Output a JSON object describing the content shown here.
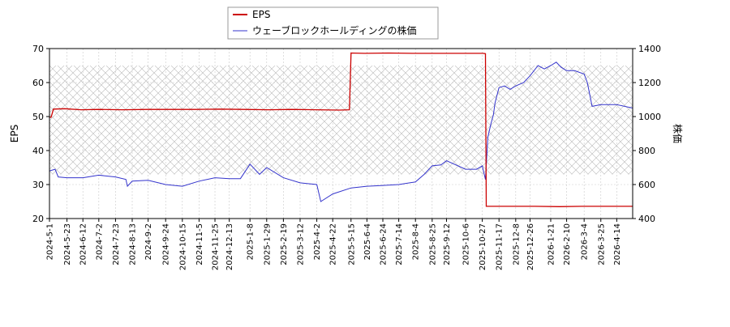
{
  "chart_data": {
    "type": "line",
    "legend": {
      "placement": "top-center",
      "entries": [
        {
          "label": "EPS",
          "color": "#cc0000"
        },
        {
          "label": "ウェーブロックホールディングの株価",
          "color": "#3333cc"
        }
      ]
    },
    "y_left": {
      "label": "EPS",
      "range": [
        20,
        70
      ],
      "ticks": [
        "20",
        "30",
        "40",
        "50",
        "60",
        "70"
      ]
    },
    "y_right": {
      "label": "株価",
      "range": [
        400,
        1400
      ],
      "ticks": [
        "400",
        "600",
        "800",
        "1000",
        "1200",
        "1400"
      ]
    },
    "x_axis": {
      "range": [
        "2024-05-01",
        "2026-05-04"
      ],
      "ticks": [
        "2024-5-1",
        "2024-5-23",
        "2024-6-12",
        "2024-7-2",
        "2024-7-23",
        "2024-8-13",
        "2024-9-2",
        "2024-9-24",
        "2024-10-15",
        "2024-11-5",
        "2024-11-25",
        "2024-12-13",
        "2025-1-8",
        "2025-1-29",
        "2025-2-19",
        "2025-3-12",
        "2025-4-2",
        "2025-4-22",
        "2025-5-15",
        "2025-6-4",
        "2025-6-24",
        "2025-7-14",
        "2025-8-4",
        "2025-8-25",
        "2025-9-12",
        "2025-10-6",
        "2025-10-27",
        "2025-11-17",
        "2025-12-8",
        "2025-12-26",
        "2026-1-21",
        "2026-2-10",
        "2026-3-4",
        "2026-3-25",
        "2026-4-14"
      ]
    },
    "hatch_band_right_axis": [
      660,
      1300
    ],
    "series": [
      {
        "name": "EPS",
        "axis": "left",
        "color": "#cc0000",
        "x": [
          "2024-05-01",
          "2024-05-03",
          "2024-05-06",
          "2024-05-20",
          "2024-06-10",
          "2024-07-01",
          "2024-08-01",
          "2024-09-01",
          "2024-10-01",
          "2024-11-01",
          "2024-12-01",
          "2025-01-01",
          "2025-02-01",
          "2025-03-01",
          "2025-04-01",
          "2025-05-01",
          "2025-05-13",
          "2025-05-15",
          "2025-06-01",
          "2025-07-01",
          "2025-08-01",
          "2025-09-01",
          "2025-10-01",
          "2025-10-28",
          "2025-10-31",
          "2025-11-01",
          "2025-12-01",
          "2026-01-01",
          "2026-02-01",
          "2026-03-01",
          "2026-04-01",
          "2026-05-04"
        ],
        "y": [
          49.8,
          49.8,
          52.2,
          52.3,
          52.0,
          52.1,
          52.0,
          52.1,
          52.1,
          52.1,
          52.2,
          52.1,
          52.0,
          52.1,
          52.0,
          51.9,
          52.0,
          68.7,
          68.6,
          68.7,
          68.6,
          68.6,
          68.6,
          68.6,
          68.5,
          23.6,
          23.6,
          23.6,
          23.5,
          23.6,
          23.6,
          23.6
        ]
      },
      {
        "name": "ウェーブロックホールディングの株価",
        "axis": "right",
        "color": "#3333cc",
        "x": [
          "2024-05-01",
          "2024-05-08",
          "2024-05-12",
          "2024-05-23",
          "2024-06-12",
          "2024-07-02",
          "2024-07-23",
          "2024-08-05",
          "2024-08-07",
          "2024-08-13",
          "2024-09-02",
          "2024-09-24",
          "2024-10-15",
          "2024-11-05",
          "2024-11-25",
          "2024-12-13",
          "2024-12-27",
          "2025-01-08",
          "2025-01-20",
          "2025-01-29",
          "2025-02-19",
          "2025-03-12",
          "2025-04-02",
          "2025-04-07",
          "2025-04-22",
          "2025-05-15",
          "2025-06-04",
          "2025-06-24",
          "2025-07-14",
          "2025-08-04",
          "2025-08-15",
          "2025-08-25",
          "2025-09-05",
          "2025-09-12",
          "2025-10-06",
          "2025-10-20",
          "2025-10-27",
          "2025-10-31",
          "2025-11-03",
          "2025-11-07",
          "2025-11-10",
          "2025-11-12",
          "2025-11-17",
          "2025-11-24",
          "2025-12-01",
          "2025-12-08",
          "2025-12-18",
          "2025-12-26",
          "2026-01-05",
          "2026-01-13",
          "2026-01-21",
          "2026-01-28",
          "2026-02-03",
          "2026-02-10",
          "2026-02-20",
          "2026-03-04",
          "2026-03-08",
          "2026-03-14",
          "2026-03-25",
          "2026-04-14",
          "2026-05-04"
        ],
        "y": [
          680,
          690,
          645,
          640,
          640,
          655,
          645,
          630,
          590,
          620,
          625,
          600,
          590,
          620,
          640,
          635,
          635,
          720,
          660,
          700,
          640,
          610,
          600,
          500,
          545,
          580,
          590,
          595,
          600,
          615,
          660,
          710,
          715,
          740,
          690,
          690,
          710,
          630,
          880,
          960,
          1010,
          1080,
          1170,
          1180,
          1160,
          1180,
          1200,
          1240,
          1300,
          1280,
          1300,
          1320,
          1290,
          1270,
          1270,
          1250,
          1200,
          1060,
          1070,
          1070,
          1050
        ]
      }
    ]
  }
}
